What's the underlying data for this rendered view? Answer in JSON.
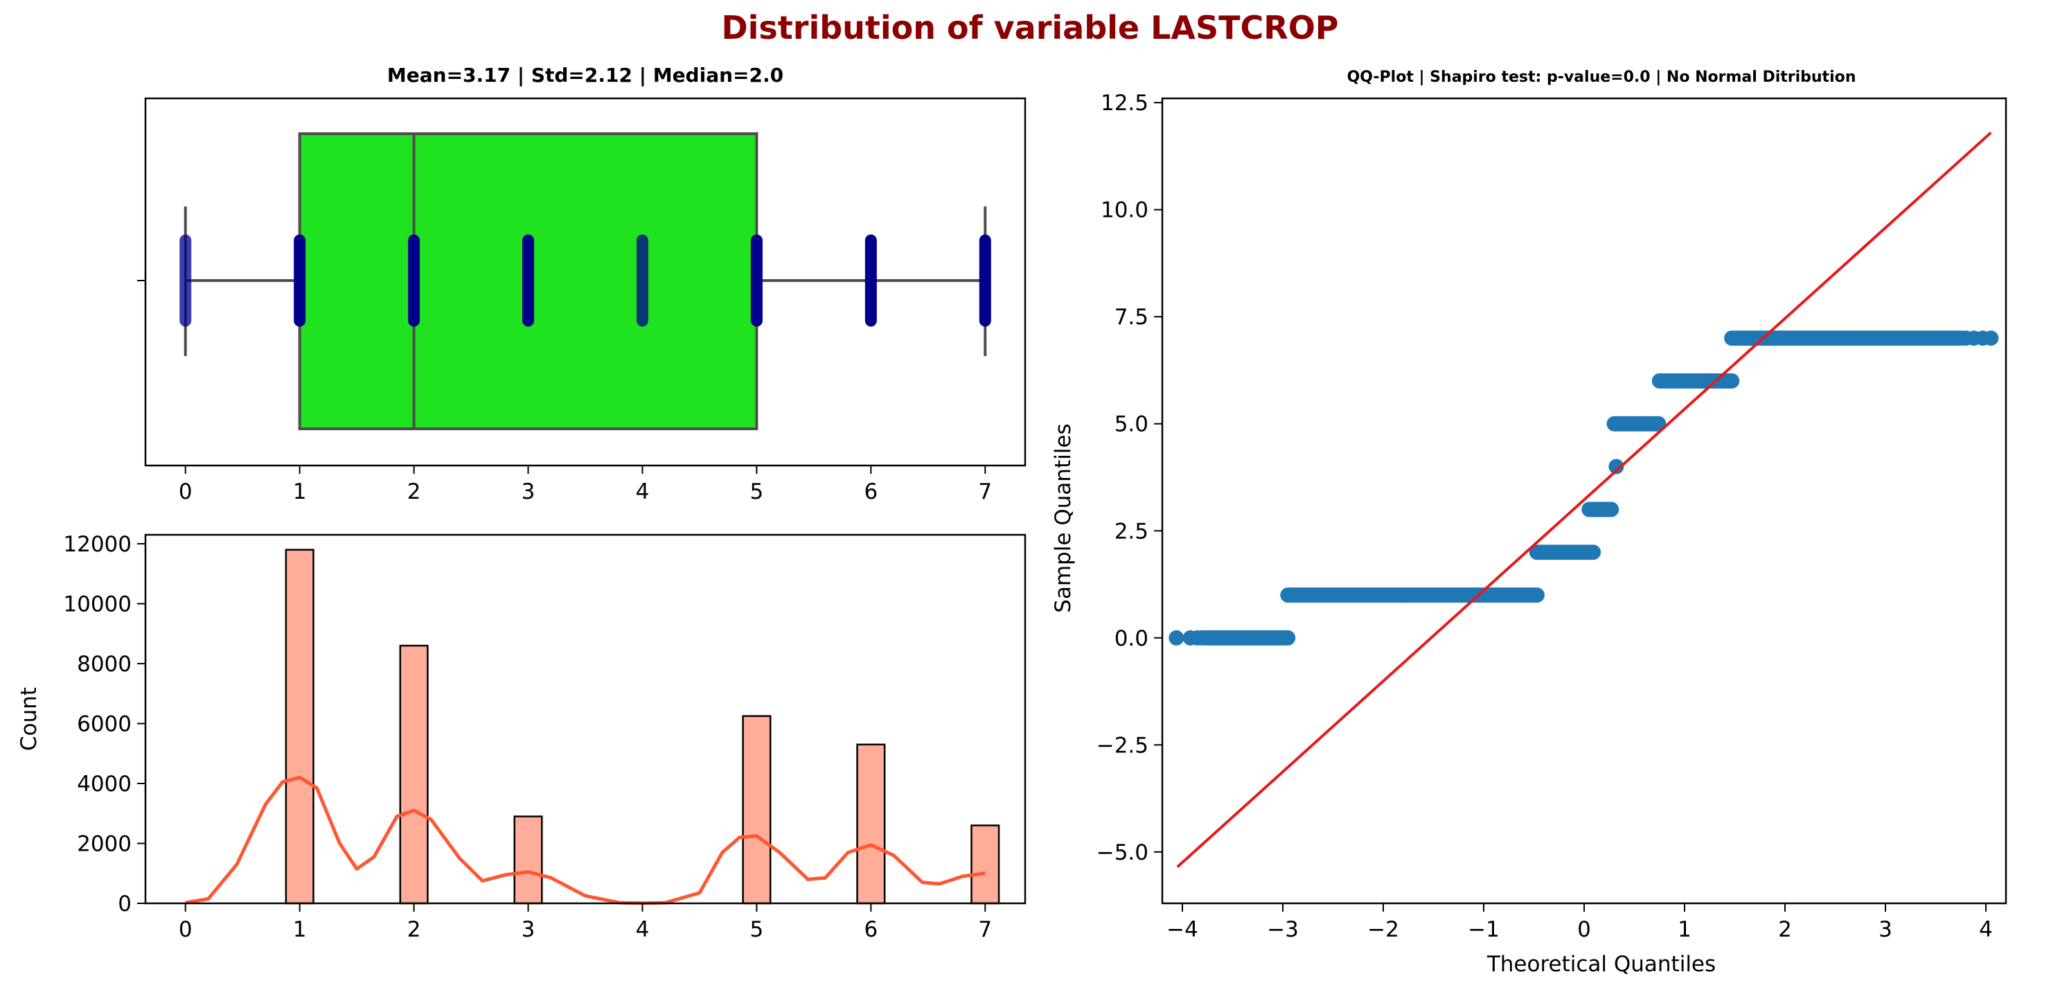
{
  "figure": {
    "suptitle": "Distribution of variable LASTCROP",
    "suptitle_color": "#8b0000"
  },
  "chart_data": [
    {
      "id": "boxplot",
      "type": "box",
      "title": "Mean=3.17 | Std=2.12 | Median=2.0",
      "xlabel": "",
      "ylabel": "",
      "xlim": [
        -0.35,
        7.35
      ],
      "xticks": [
        0,
        1,
        2,
        3,
        4,
        5,
        6,
        7
      ],
      "box": {
        "whisker_low": 0,
        "q1": 1,
        "median": 2,
        "q3": 5,
        "whisker_high": 7
      },
      "box_color": "#1fe31f",
      "edge_color": "#4d4d4d",
      "strip_points": [
        {
          "x": 0,
          "spread": 0.55
        },
        {
          "x": 1,
          "spread": 0.55
        },
        {
          "x": 2,
          "spread": 0.55
        },
        {
          "x": 3,
          "spread": 0.55
        },
        {
          "x": 4,
          "spread": 0.55
        },
        {
          "x": 5,
          "spread": 0.55
        },
        {
          "x": 6,
          "spread": 0.55
        },
        {
          "x": 7,
          "spread": 0.55
        }
      ],
      "point_color": "#00008b"
    },
    {
      "id": "histogram",
      "type": "bar",
      "title": "",
      "xlabel": "",
      "ylabel": "Count",
      "xlim": [
        -0.35,
        7.35
      ],
      "ylim": [
        0,
        12300
      ],
      "xticks": [
        0,
        1,
        2,
        3,
        4,
        5,
        6,
        7
      ],
      "yticks": [
        0,
        2000,
        4000,
        6000,
        8000,
        10000,
        12000
      ],
      "bin_width": 0.24,
      "bars": [
        {
          "x": 1,
          "value": 11800
        },
        {
          "x": 2,
          "value": 8600
        },
        {
          "x": 3,
          "value": 2900
        },
        {
          "x": 5,
          "value": 6250
        },
        {
          "x": 6,
          "value": 5300
        },
        {
          "x": 7,
          "value": 2600
        }
      ],
      "bar_color": "#ffad99",
      "kde_color": "#ff5733",
      "kde": [
        [
          0.0,
          20
        ],
        [
          0.2,
          150
        ],
        [
          0.45,
          1300
        ],
        [
          0.7,
          3300
        ],
        [
          0.85,
          4050
        ],
        [
          1.0,
          4200
        ],
        [
          1.15,
          3850
        ],
        [
          1.35,
          2000
        ],
        [
          1.5,
          1150
        ],
        [
          1.65,
          1550
        ],
        [
          1.85,
          2900
        ],
        [
          2.0,
          3100
        ],
        [
          2.15,
          2800
        ],
        [
          2.4,
          1500
        ],
        [
          2.6,
          750
        ],
        [
          2.8,
          950
        ],
        [
          3.0,
          1050
        ],
        [
          3.2,
          850
        ],
        [
          3.5,
          250
        ],
        [
          3.8,
          20
        ],
        [
          4.0,
          5
        ],
        [
          4.2,
          20
        ],
        [
          4.5,
          350
        ],
        [
          4.7,
          1700
        ],
        [
          4.85,
          2200
        ],
        [
          5.0,
          2250
        ],
        [
          5.2,
          1700
        ],
        [
          5.45,
          800
        ],
        [
          5.6,
          850
        ],
        [
          5.8,
          1700
        ],
        [
          6.0,
          1950
        ],
        [
          6.2,
          1600
        ],
        [
          6.45,
          700
        ],
        [
          6.6,
          650
        ],
        [
          6.8,
          900
        ],
        [
          7.0,
          1000
        ]
      ]
    },
    {
      "id": "qqplot",
      "type": "scatter",
      "title": "QQ-Plot | Shapiro test: p-value=0.0 | No Normal Ditribution",
      "xlabel": "Theoretical Quantiles",
      "ylabel": "Sample Quantiles",
      "xlim": [
        -4.2,
        4.2
      ],
      "ylim": [
        -6.2,
        12.6
      ],
      "xticks": [
        -4,
        -3,
        -2,
        -1,
        0,
        1,
        2,
        3,
        4
      ],
      "yticks": [
        -5.0,
        -2.5,
        0.0,
        2.5,
        5.0,
        7.5,
        10.0,
        12.5
      ],
      "point_color": "#1f77b4",
      "line_color": "#e41a1c",
      "fit_line": [
        [
          -4.05,
          -5.35
        ],
        [
          4.05,
          11.8
        ]
      ],
      "segments": [
        {
          "y": 0,
          "from": -2.95,
          "to": -3.8,
          "step": 0.025
        },
        {
          "y": 1,
          "from": -2.95,
          "to": -0.47,
          "step": 0.02
        },
        {
          "y": 2,
          "from": -0.47,
          "to": 0.1,
          "step": 0.02
        },
        {
          "y": 3,
          "from": 0.05,
          "to": 0.28,
          "step": 0.02
        },
        {
          "y": 5,
          "from": 0.3,
          "to": 0.75,
          "step": 0.02
        },
        {
          "y": 6,
          "from": 0.75,
          "to": 1.47,
          "step": 0.02
        },
        {
          "y": 7,
          "from": 1.47,
          "to": 3.75,
          "step": 0.02
        }
      ],
      "points": [
        [
          -4.06,
          0
        ],
        [
          -3.92,
          0
        ],
        [
          -3.85,
          0
        ],
        [
          0.32,
          4
        ],
        [
          3.8,
          7
        ],
        [
          3.88,
          7
        ],
        [
          3.97,
          7
        ],
        [
          4.05,
          7
        ]
      ]
    }
  ]
}
